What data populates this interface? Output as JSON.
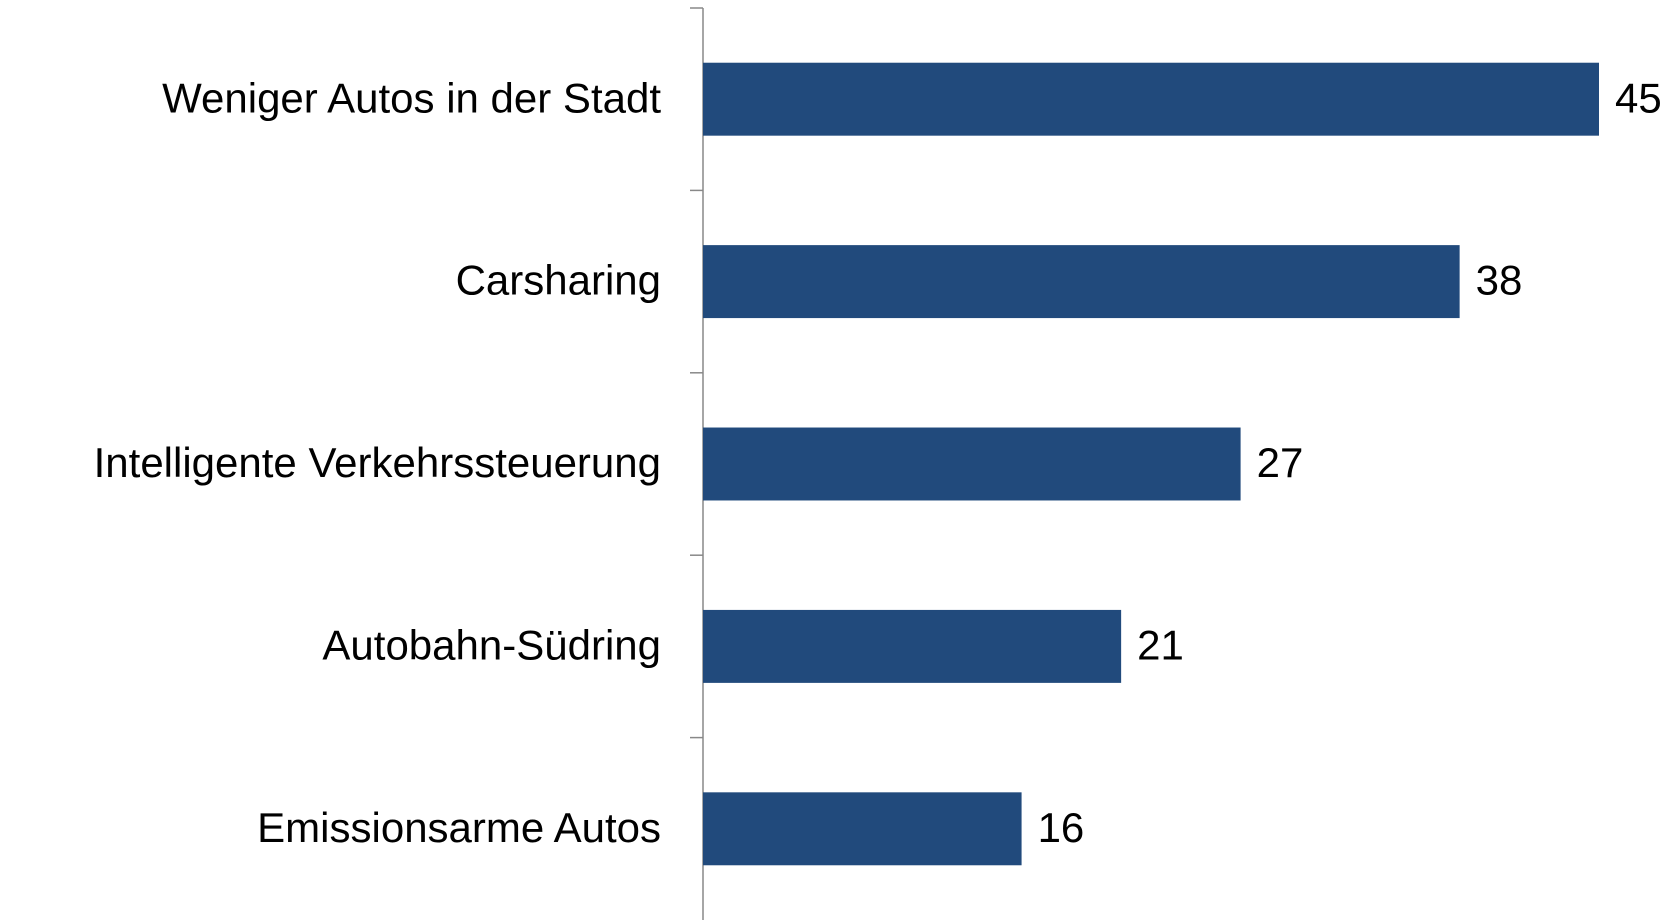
{
  "chart_data": {
    "type": "barh",
    "categories": [
      "Weniger Autos in der Stadt",
      "Carsharing",
      "Intelligente Verkehrssteuerung",
      "Autobahn-Südring",
      "Emissionsarme Autos"
    ],
    "values": [
      45,
      38,
      27,
      21,
      16
    ],
    "color": "#214a7c"
  }
}
